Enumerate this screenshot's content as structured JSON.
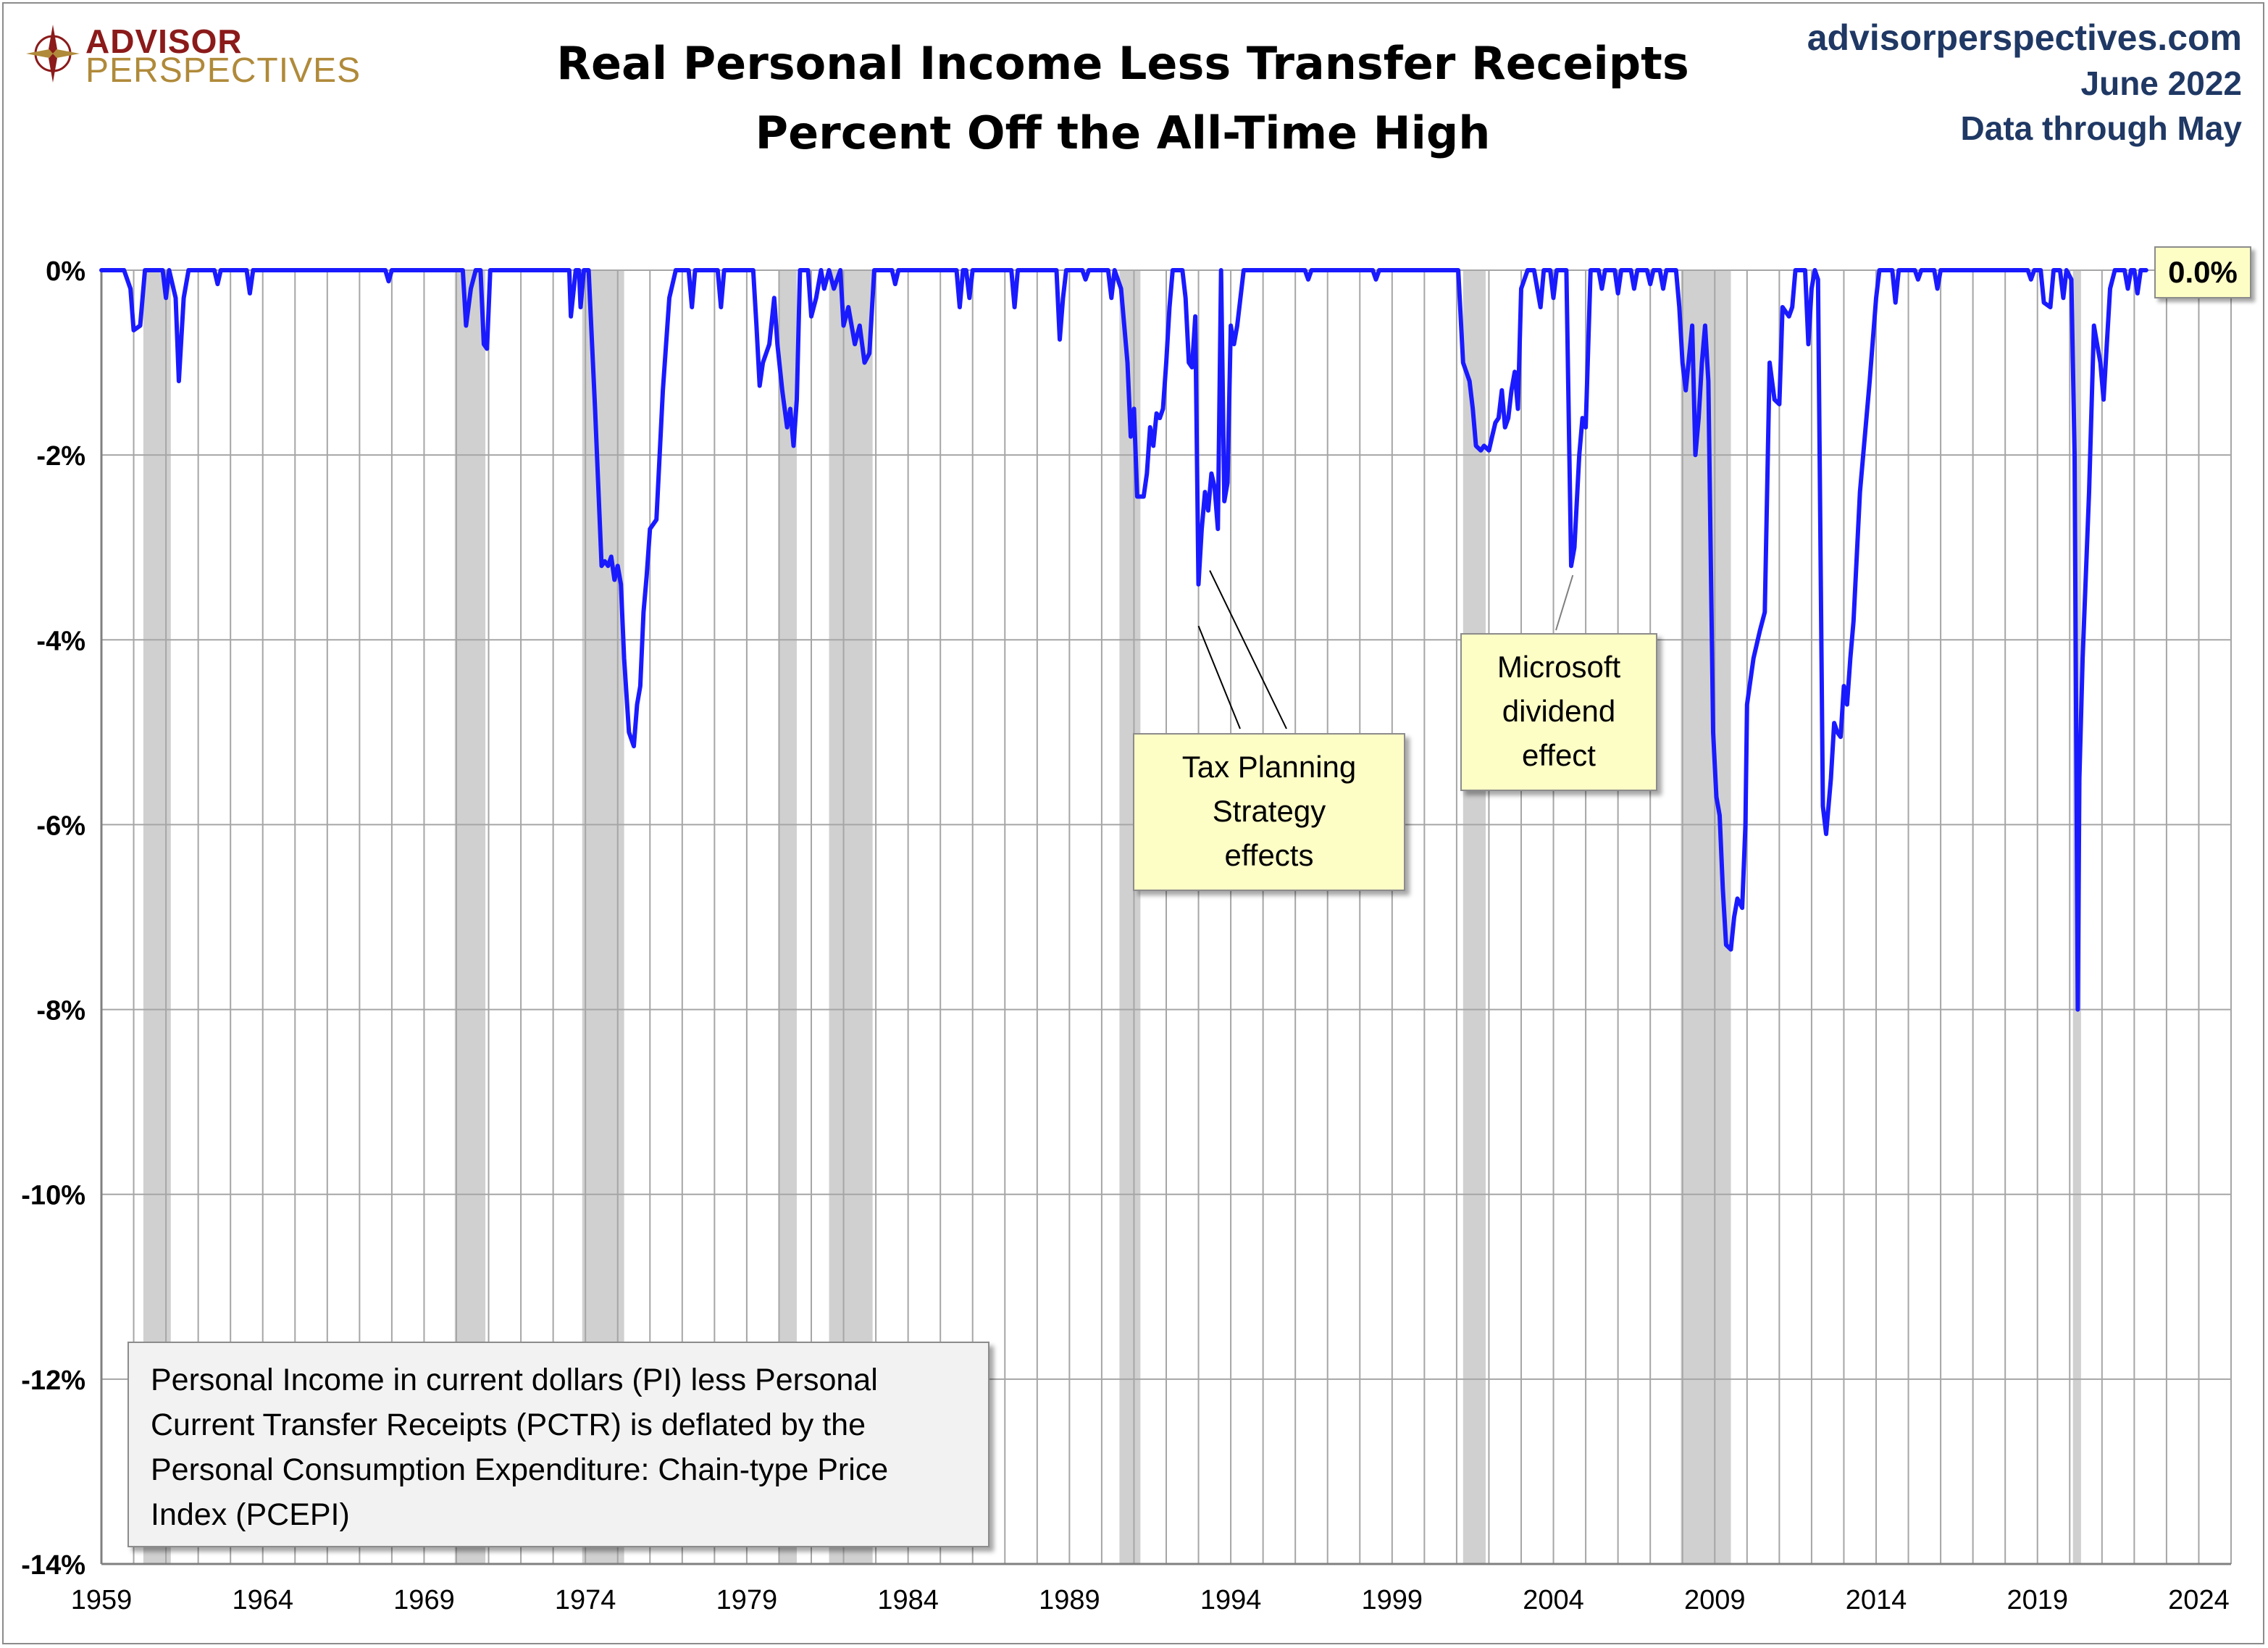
{
  "logo": {
    "line1": "ADVISOR",
    "line2": "PERSPECTIVES"
  },
  "title": {
    "line1": "Real Personal Income Less Transfer Receipts",
    "line2": "Percent Off the All-Time High"
  },
  "source": {
    "site": "advisorperspectives.com",
    "date": "June 2022",
    "data_through": "Data through May"
  },
  "annotations": {
    "tax": [
      "Tax Planning",
      "Strategy",
      "effects"
    ],
    "msft": [
      "Microsoft",
      "dividend",
      "effect"
    ]
  },
  "description": "Personal Income in current dollars  (PI) less Personal Current Transfer Receipts (PCTR) is deflated by the Personal Consumption Expenditure: Chain-type Price Index (PCEPI)",
  "last_value_label": "0.0%",
  "colors": {
    "line": "#1a1aff",
    "recession": "#d0d0d0",
    "grid": "#a6a6a6",
    "note_bg": "#fdfdc6",
    "brand": "#1f3864"
  },
  "chart_data": {
    "type": "line",
    "title": "Real Personal Income Less Transfer Receipts Percent Off the All-Time High",
    "xlabel": "",
    "ylabel": "",
    "xlim": [
      1959,
      2025
    ],
    "ylim": [
      -14,
      0
    ],
    "x_ticks": [
      1959,
      1964,
      1969,
      1974,
      1979,
      1984,
      1989,
      1994,
      1999,
      2004,
      2009,
      2014,
      2019,
      2024
    ],
    "y_ticks": [
      0,
      -2,
      -4,
      -6,
      -8,
      -10,
      -12,
      -14
    ],
    "y_tick_labels": [
      "0%",
      "-2%",
      "-4%",
      "-6%",
      "-8%",
      "-10%",
      "-12%",
      "-14%"
    ],
    "grid": true,
    "recessions": [
      [
        1960.3,
        1961.15
      ],
      [
        1969.95,
        1970.9
      ],
      [
        1973.9,
        1975.2
      ],
      [
        1980.0,
        1980.55
      ],
      [
        1981.55,
        1982.9
      ],
      [
        1990.55,
        1991.2
      ],
      [
        2001.2,
        2001.9
      ],
      [
        2007.95,
        2009.5
      ],
      [
        2020.1,
        2020.35
      ]
    ],
    "series": [
      {
        "values": [
          [
            1959.0,
            0
          ],
          [
            1959.7,
            0
          ],
          [
            1959.9,
            -0.2
          ],
          [
            1960.0,
            -0.65
          ],
          [
            1960.2,
            -0.6
          ],
          [
            1960.35,
            0
          ],
          [
            1960.9,
            0
          ],
          [
            1961.0,
            -0.3
          ],
          [
            1961.1,
            0
          ],
          [
            1961.3,
            -0.3
          ],
          [
            1961.4,
            -1.2
          ],
          [
            1961.55,
            -0.3
          ],
          [
            1961.7,
            0
          ],
          [
            1962.5,
            0
          ],
          [
            1962.6,
            -0.15
          ],
          [
            1962.7,
            0
          ],
          [
            1963.5,
            0
          ],
          [
            1963.6,
            -0.25
          ],
          [
            1963.7,
            0
          ],
          [
            1967.8,
            0
          ],
          [
            1967.9,
            -0.12
          ],
          [
            1968.0,
            0
          ],
          [
            1970.2,
            0
          ],
          [
            1970.3,
            -0.6
          ],
          [
            1970.45,
            -0.2
          ],
          [
            1970.6,
            0
          ],
          [
            1970.75,
            0
          ],
          [
            1970.85,
            -0.8
          ],
          [
            1970.95,
            -0.85
          ],
          [
            1971.05,
            0
          ],
          [
            1973.5,
            0
          ],
          [
            1973.55,
            -0.5
          ],
          [
            1973.7,
            0
          ],
          [
            1973.8,
            0
          ],
          [
            1973.85,
            -0.4
          ],
          [
            1973.95,
            0
          ],
          [
            1974.1,
            0
          ],
          [
            1974.3,
            -1.5
          ],
          [
            1974.5,
            -3.2
          ],
          [
            1974.6,
            -3.15
          ],
          [
            1974.7,
            -3.2
          ],
          [
            1974.8,
            -3.1
          ],
          [
            1974.9,
            -3.35
          ],
          [
            1975.0,
            -3.2
          ],
          [
            1975.1,
            -3.4
          ],
          [
            1975.2,
            -4.2
          ],
          [
            1975.35,
            -5.0
          ],
          [
            1975.5,
            -5.15
          ],
          [
            1975.6,
            -4.7
          ],
          [
            1975.7,
            -4.5
          ],
          [
            1975.8,
            -3.7
          ],
          [
            1975.9,
            -3.3
          ],
          [
            1976.0,
            -2.8
          ],
          [
            1976.2,
            -2.7
          ],
          [
            1976.4,
            -1.3
          ],
          [
            1976.6,
            -0.3
          ],
          [
            1976.8,
            0
          ],
          [
            1977.2,
            0
          ],
          [
            1977.3,
            -0.4
          ],
          [
            1977.4,
            0
          ],
          [
            1978.1,
            0
          ],
          [
            1978.2,
            -0.4
          ],
          [
            1978.3,
            0
          ],
          [
            1979.2,
            0
          ],
          [
            1979.3,
            -0.6
          ],
          [
            1979.4,
            -1.25
          ],
          [
            1979.5,
            -1.0
          ],
          [
            1979.7,
            -0.8
          ],
          [
            1979.85,
            -0.3
          ],
          [
            1979.95,
            -0.8
          ],
          [
            1980.1,
            -1.3
          ],
          [
            1980.25,
            -1.7
          ],
          [
            1980.35,
            -1.5
          ],
          [
            1980.45,
            -1.9
          ],
          [
            1980.55,
            -1.4
          ],
          [
            1980.65,
            0
          ],
          [
            1980.9,
            0
          ],
          [
            1981.0,
            -0.5
          ],
          [
            1981.15,
            -0.3
          ],
          [
            1981.3,
            0
          ],
          [
            1981.4,
            -0.2
          ],
          [
            1981.55,
            0
          ],
          [
            1981.7,
            -0.2
          ],
          [
            1981.9,
            0
          ],
          [
            1982.0,
            -0.6
          ],
          [
            1982.15,
            -0.4
          ],
          [
            1982.35,
            -0.8
          ],
          [
            1982.5,
            -0.6
          ],
          [
            1982.65,
            -1.0
          ],
          [
            1982.8,
            -0.9
          ],
          [
            1982.95,
            0
          ],
          [
            1983.5,
            0
          ],
          [
            1983.6,
            -0.15
          ],
          [
            1983.7,
            0
          ],
          [
            1985.5,
            0
          ],
          [
            1985.6,
            -0.4
          ],
          [
            1985.7,
            0
          ],
          [
            1985.8,
            0
          ],
          [
            1985.9,
            -0.3
          ],
          [
            1986.0,
            0
          ],
          [
            1987.2,
            0
          ],
          [
            1987.3,
            -0.4
          ],
          [
            1987.4,
            0
          ],
          [
            1988.6,
            0
          ],
          [
            1988.7,
            -0.75
          ],
          [
            1988.8,
            -0.3
          ],
          [
            1988.9,
            0
          ],
          [
            1989.4,
            0
          ],
          [
            1989.5,
            -0.1
          ],
          [
            1989.6,
            0
          ],
          [
            1990.2,
            0
          ],
          [
            1990.3,
            -0.3
          ],
          [
            1990.4,
            0
          ],
          [
            1990.6,
            -0.2
          ],
          [
            1990.8,
            -1.0
          ],
          [
            1990.9,
            -1.8
          ],
          [
            1991.0,
            -1.5
          ],
          [
            1991.1,
            -2.45
          ],
          [
            1991.3,
            -2.45
          ],
          [
            1991.4,
            -2.2
          ],
          [
            1991.5,
            -1.7
          ],
          [
            1991.6,
            -1.9
          ],
          [
            1991.7,
            -1.55
          ],
          [
            1991.8,
            -1.6
          ],
          [
            1991.9,
            -1.5
          ],
          [
            1992.0,
            -1.0
          ],
          [
            1992.1,
            -0.4
          ],
          [
            1992.2,
            0
          ],
          [
            1992.5,
            0
          ],
          [
            1992.6,
            -0.3
          ],
          [
            1992.7,
            -1.0
          ],
          [
            1992.8,
            -1.05
          ],
          [
            1992.9,
            -0.5
          ],
          [
            1993.0,
            -3.4
          ],
          [
            1993.1,
            -2.8
          ],
          [
            1993.2,
            -2.4
          ],
          [
            1993.3,
            -2.6
          ],
          [
            1993.4,
            -2.2
          ],
          [
            1993.5,
            -2.35
          ],
          [
            1993.6,
            -2.8
          ],
          [
            1993.7,
            0
          ],
          [
            1993.8,
            -2.5
          ],
          [
            1993.9,
            -2.3
          ],
          [
            1994.0,
            -0.6
          ],
          [
            1994.1,
            -0.8
          ],
          [
            1994.2,
            -0.6
          ],
          [
            1994.4,
            0
          ],
          [
            1996.3,
            0
          ],
          [
            1996.4,
            -0.1
          ],
          [
            1996.5,
            0
          ],
          [
            1998.4,
            0
          ],
          [
            1998.5,
            -0.1
          ],
          [
            1998.6,
            0
          ],
          [
            2001.05,
            0
          ],
          [
            2001.2,
            -1.0
          ],
          [
            2001.4,
            -1.2
          ],
          [
            2001.5,
            -1.5
          ],
          [
            2001.6,
            -1.9
          ],
          [
            2001.75,
            -1.95
          ],
          [
            2001.85,
            -1.9
          ],
          [
            2002.0,
            -1.95
          ],
          [
            2002.1,
            -1.8
          ],
          [
            2002.2,
            -1.65
          ],
          [
            2002.3,
            -1.6
          ],
          [
            2002.4,
            -1.3
          ],
          [
            2002.5,
            -1.7
          ],
          [
            2002.6,
            -1.6
          ],
          [
            2002.7,
            -1.3
          ],
          [
            2002.8,
            -1.1
          ],
          [
            2002.9,
            -1.5
          ],
          [
            2003.0,
            -0.2
          ],
          [
            2003.2,
            0
          ],
          [
            2003.4,
            0
          ],
          [
            2003.6,
            -0.4
          ],
          [
            2003.7,
            0
          ],
          [
            2003.9,
            0
          ],
          [
            2004.0,
            -0.3
          ],
          [
            2004.1,
            0
          ],
          [
            2004.4,
            0
          ],
          [
            2004.55,
            -3.2
          ],
          [
            2004.65,
            -3.0
          ],
          [
            2004.8,
            -2.0
          ],
          [
            2004.9,
            -1.6
          ],
          [
            2005.0,
            -1.7
          ],
          [
            2005.15,
            0
          ],
          [
            2005.4,
            0
          ],
          [
            2005.5,
            -0.2
          ],
          [
            2005.6,
            0
          ],
          [
            2005.9,
            0
          ],
          [
            2006.0,
            -0.25
          ],
          [
            2006.1,
            0
          ],
          [
            2006.4,
            0
          ],
          [
            2006.5,
            -0.2
          ],
          [
            2006.6,
            0
          ],
          [
            2006.9,
            0
          ],
          [
            2007.0,
            -0.15
          ],
          [
            2007.1,
            0
          ],
          [
            2007.3,
            0
          ],
          [
            2007.4,
            -0.2
          ],
          [
            2007.5,
            0
          ],
          [
            2007.8,
            0
          ],
          [
            2007.9,
            -0.4
          ],
          [
            2008.0,
            -1.0
          ],
          [
            2008.1,
            -1.3
          ],
          [
            2008.3,
            -0.6
          ],
          [
            2008.4,
            -2.0
          ],
          [
            2008.5,
            -1.6
          ],
          [
            2008.6,
            -1.0
          ],
          [
            2008.7,
            -0.6
          ],
          [
            2008.8,
            -1.2
          ],
          [
            2008.95,
            -5.0
          ],
          [
            2009.05,
            -5.7
          ],
          [
            2009.15,
            -5.9
          ],
          [
            2009.25,
            -6.7
          ],
          [
            2009.35,
            -7.3
          ],
          [
            2009.5,
            -7.35
          ],
          [
            2009.6,
            -7.0
          ],
          [
            2009.7,
            -6.8
          ],
          [
            2009.85,
            -6.9
          ],
          [
            2009.95,
            -6.0
          ],
          [
            2010.0,
            -4.7
          ],
          [
            2010.2,
            -4.2
          ],
          [
            2010.4,
            -3.9
          ],
          [
            2010.55,
            -3.7
          ],
          [
            2010.7,
            -1.0
          ],
          [
            2010.85,
            -1.4
          ],
          [
            2011.0,
            -1.45
          ],
          [
            2011.1,
            -0.4
          ],
          [
            2011.3,
            -0.5
          ],
          [
            2011.4,
            -0.4
          ],
          [
            2011.5,
            0
          ],
          [
            2011.8,
            0
          ],
          [
            2011.9,
            -0.8
          ],
          [
            2012.0,
            -0.2
          ],
          [
            2012.1,
            0
          ],
          [
            2012.2,
            -0.1
          ],
          [
            2012.35,
            -5.8
          ],
          [
            2012.45,
            -6.1
          ],
          [
            2012.6,
            -5.5
          ],
          [
            2012.7,
            -4.9
          ],
          [
            2012.8,
            -5.0
          ],
          [
            2012.9,
            -5.05
          ],
          [
            2013.0,
            -4.5
          ],
          [
            2013.1,
            -4.7
          ],
          [
            2013.2,
            -4.2
          ],
          [
            2013.3,
            -3.8
          ],
          [
            2013.5,
            -2.4
          ],
          [
            2013.8,
            -1.2
          ],
          [
            2014.0,
            -0.3
          ],
          [
            2014.1,
            0
          ],
          [
            2014.5,
            0
          ],
          [
            2014.6,
            -0.35
          ],
          [
            2014.7,
            0
          ],
          [
            2015.2,
            0
          ],
          [
            2015.3,
            -0.1
          ],
          [
            2015.4,
            0
          ],
          [
            2015.8,
            0
          ],
          [
            2015.9,
            -0.2
          ],
          [
            2016.0,
            0
          ],
          [
            2018.7,
            0
          ],
          [
            2018.8,
            -0.1
          ],
          [
            2018.9,
            0
          ],
          [
            2019.1,
            0
          ],
          [
            2019.2,
            -0.35
          ],
          [
            2019.4,
            -0.4
          ],
          [
            2019.5,
            0
          ],
          [
            2019.7,
            0
          ],
          [
            2019.8,
            -0.3
          ],
          [
            2019.9,
            0
          ],
          [
            2020.05,
            -0.1
          ],
          [
            2020.15,
            -2.0
          ],
          [
            2020.25,
            -8.0
          ],
          [
            2020.3,
            -5.5
          ],
          [
            2020.4,
            -4.2
          ],
          [
            2020.6,
            -2.4
          ],
          [
            2020.75,
            -0.6
          ],
          [
            2020.85,
            -0.8
          ],
          [
            2020.95,
            -1.0
          ],
          [
            2021.05,
            -1.4
          ],
          [
            2021.15,
            -0.8
          ],
          [
            2021.25,
            -0.2
          ],
          [
            2021.4,
            0
          ],
          [
            2021.7,
            0
          ],
          [
            2021.8,
            -0.2
          ],
          [
            2021.9,
            0
          ],
          [
            2022.0,
            0
          ],
          [
            2022.1,
            -0.25
          ],
          [
            2022.2,
            0
          ],
          [
            2022.37,
            0
          ]
        ]
      }
    ],
    "last_value": 0.0
  }
}
